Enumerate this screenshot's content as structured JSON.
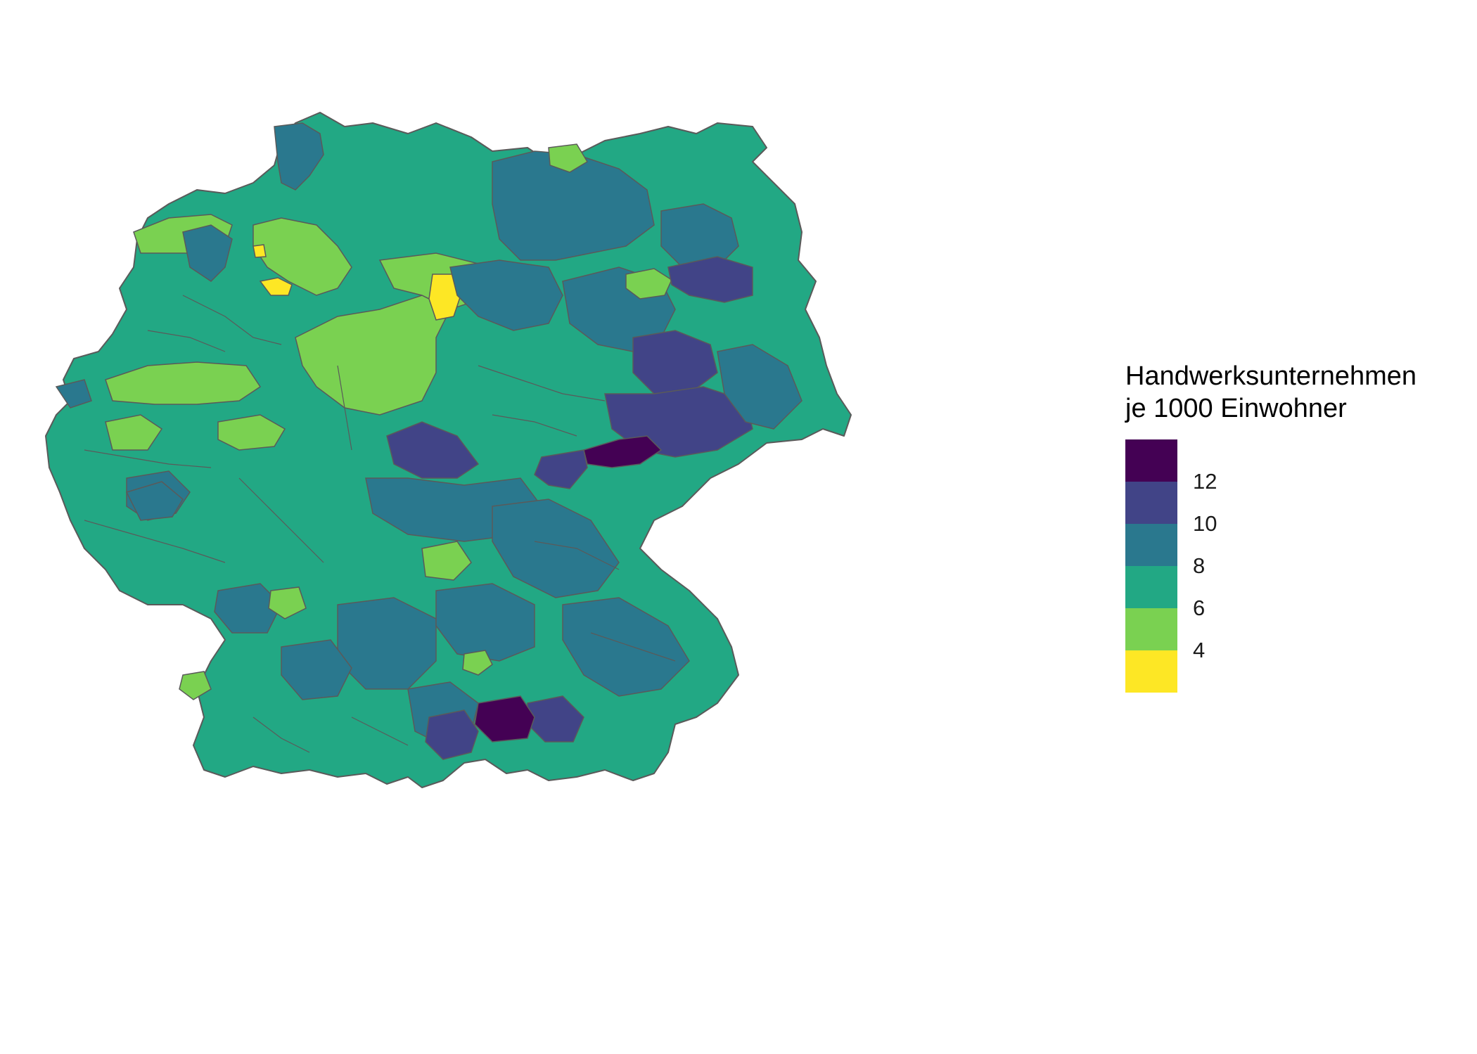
{
  "legend": {
    "title_line1": "Handwerksunternehmen",
    "title_line2": "je 1000 Einwohner",
    "bins": [
      {
        "color": "#FDE725"
      },
      {
        "color": "#7AD151"
      },
      {
        "color": "#22A884"
      },
      {
        "color": "#2A788E"
      },
      {
        "color": "#414487"
      },
      {
        "color": "#440154"
      }
    ],
    "ticks": [
      "4",
      "6",
      "8",
      "10",
      "12"
    ]
  },
  "map": {
    "region": "Germany, districts (Landkreise)",
    "border_color": "#5a5a5a",
    "dominant_class_color": "#22A884"
  }
}
